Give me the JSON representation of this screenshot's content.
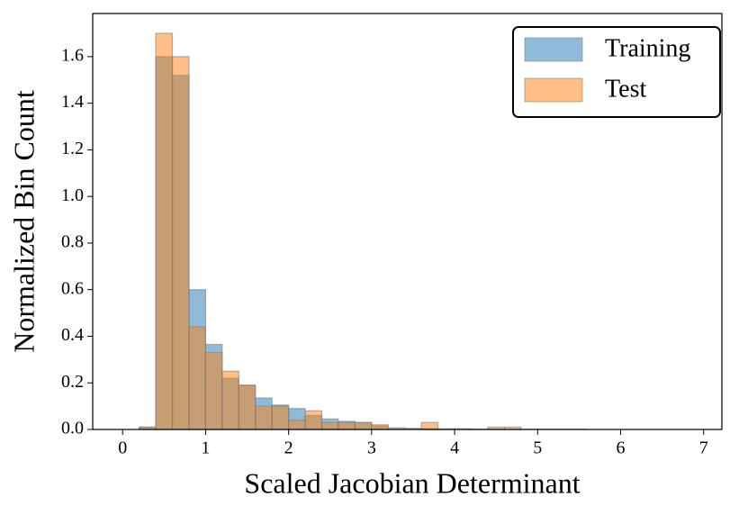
{
  "chart_data": {
    "type": "histogram",
    "x_label": "Scaled Jacobian Determinant",
    "y_label": "Normalized Bin Count",
    "bins": [
      0,
      0.2,
      0.4,
      0.6,
      0.8,
      1.0,
      1.2,
      1.4,
      1.6,
      1.8,
      2.0,
      2.2,
      2.4,
      2.6,
      2.8,
      3.0,
      3.2,
      3.4,
      3.6,
      3.8,
      4.0,
      4.2,
      4.4,
      4.6,
      4.8,
      5.0,
      5.2,
      5.4,
      5.6,
      5.8,
      6.0,
      6.2,
      6.4,
      6.6,
      6.8,
      7.0
    ],
    "series": [
      {
        "name": "Training",
        "color": "#1f77b4",
        "values": [
          0,
          0.01,
          1.6,
          1.52,
          0.6,
          0.365,
          0.22,
          0.19,
          0.135,
          0.105,
          0.09,
          0.06,
          0.045,
          0.035,
          0.03,
          0.015,
          0.007,
          0.005,
          0.004,
          0.003,
          0.003,
          0.002,
          0.002,
          0.001,
          0.001,
          0.001,
          0.001,
          0.001,
          0,
          0,
          0,
          0,
          0,
          0,
          0
        ]
      },
      {
        "name": "Test",
        "color": "#ff7f0e",
        "values": [
          0,
          0.01,
          1.7,
          1.6,
          0.44,
          0.33,
          0.25,
          0.19,
          0.1,
          0.1,
          0.04,
          0.08,
          0.03,
          0.03,
          0.03,
          0.02,
          0,
          0,
          0.03,
          0,
          0,
          0,
          0.01,
          0.01,
          0,
          0,
          0,
          0,
          0,
          0,
          0,
          0,
          0,
          0,
          0
        ]
      }
    ],
    "xlim": [
      -0.36,
      7.22
    ],
    "ylim": [
      0,
      1.785
    ],
    "xticks": [
      0,
      1,
      2,
      3,
      4,
      5,
      6,
      7
    ],
    "yticks": [
      {
        "value": 0,
        "label": "0.0"
      },
      0.2,
      0.4,
      0.6,
      0.8,
      {
        "value": 1,
        "label": "1.0"
      },
      1.2,
      1.4,
      1.6
    ],
    "legend": "upper right"
  }
}
